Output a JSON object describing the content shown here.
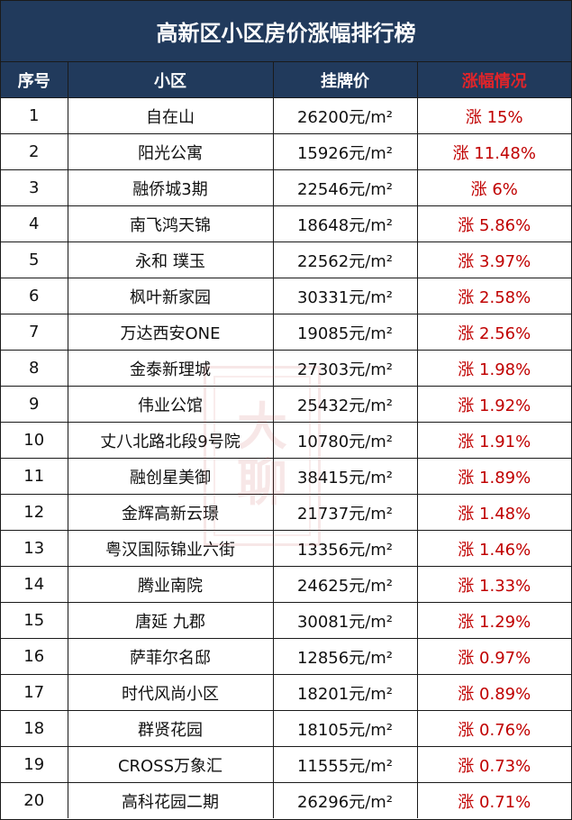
{
  "title": "高新区小区房价涨幅排行榜",
  "headers": {
    "rank": "序号",
    "name": "小区",
    "price": "挂牌价",
    "change": "涨幅情况"
  },
  "rows": [
    {
      "rank": "1",
      "name": "自在山",
      "price": "26200元/m²",
      "change": "涨 15%"
    },
    {
      "rank": "2",
      "name": "阳光公寓",
      "price": "15926元/m²",
      "change": "涨 11.48%"
    },
    {
      "rank": "3",
      "name": "融侨城3期",
      "price": "22546元/m²",
      "change": "涨 6%"
    },
    {
      "rank": "4",
      "name": "南飞鸿天锦",
      "price": "18648元/m²",
      "change": "涨 5.86%"
    },
    {
      "rank": "5",
      "name": "永和 璞玉",
      "price": "22562元/m²",
      "change": "涨 3.97%"
    },
    {
      "rank": "6",
      "name": "枫叶新家园",
      "price": "30331元/m²",
      "change": "涨 2.58%"
    },
    {
      "rank": "7",
      "name": "万达西安ONE",
      "price": "19085元/m²",
      "change": "涨 2.56%"
    },
    {
      "rank": "8",
      "name": "金泰新理城",
      "price": "27303元/m²",
      "change": "涨 1.98%"
    },
    {
      "rank": "9",
      "name": "伟业公馆",
      "price": "25432元/m²",
      "change": "涨 1.92%"
    },
    {
      "rank": "10",
      "name": "丈八北路北段9号院",
      "price": "10780元/m²",
      "change": "涨 1.91%"
    },
    {
      "rank": "11",
      "name": "融创星美御",
      "price": "38415元/m²",
      "change": "涨 1.89%"
    },
    {
      "rank": "12",
      "name": "金辉高新云璟",
      "price": "21737元/m²",
      "change": "涨 1.48%"
    },
    {
      "rank": "13",
      "name": "粤汉国际锦业六街",
      "price": "13356元/m²",
      "change": "涨 1.46%"
    },
    {
      "rank": "14",
      "name": "腾业南院",
      "price": "24625元/m²",
      "change": "涨 1.33%"
    },
    {
      "rank": "15",
      "name": "唐延 九郡",
      "price": "30081元/m²",
      "change": "涨 1.29%"
    },
    {
      "rank": "16",
      "name": "萨菲尔名邸",
      "price": "12856元/m²",
      "change": "涨 0.97%"
    },
    {
      "rank": "17",
      "name": "时代风尚小区",
      "price": "18201元/m²",
      "change": "涨 0.89%"
    },
    {
      "rank": "18",
      "name": "群贤花园",
      "price": "18105元/m²",
      "change": "涨 0.76%"
    },
    {
      "rank": "19",
      "name": "CROSS万象汇",
      "price": "11555元/m²",
      "change": "涨 0.73%"
    },
    {
      "rank": "20",
      "name": "高科花园二期",
      "price": "26296元/m²",
      "change": "涨 0.71%"
    }
  ],
  "watermark": {
    "top": "大",
    "bottom": "聊"
  },
  "colors": {
    "header_bg": "#213a5c",
    "header_text": "#ffffff",
    "change_header_text": "#e0242a",
    "change_text": "#c00000"
  }
}
